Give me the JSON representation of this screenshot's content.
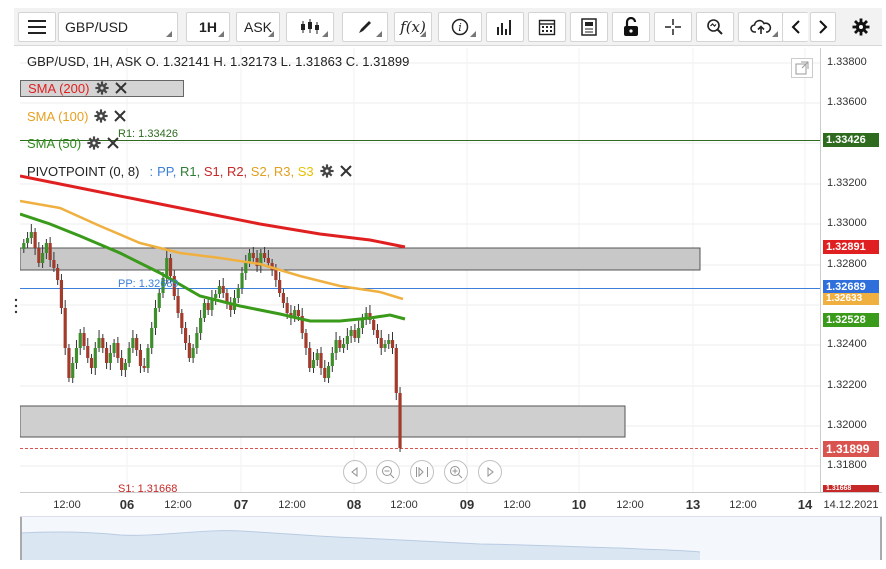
{
  "toolbar": {
    "symbol": "GBP/USD",
    "interval": "1H",
    "price_side": "ASK"
  },
  "legend": {
    "ohlc": "GBP/USD, 1H, ASK   O. 1.32141 H. 1.32173 L. 1.31863 C. 1.31899",
    "sma200": "SMA (200)",
    "sma100": "SMA (100)",
    "sma50": "SMA (50)",
    "pivot_name": "PIVOTPOINT (0, 8)",
    "pivot_sep": ":",
    "pivot_items": [
      {
        "text": "PP,",
        "color": "#3b7fd9"
      },
      {
        "text": "R1,",
        "color": "#2e7d32"
      },
      {
        "text": "S1,",
        "color": "#c62828"
      },
      {
        "text": "R2,",
        "color": "#c62828"
      },
      {
        "text": "S2,",
        "color": "#e0a020"
      },
      {
        "text": "R3,",
        "color": "#e0a020"
      },
      {
        "text": "S3",
        "color": "#e8c000"
      }
    ]
  },
  "levels": {
    "r1": "R1: 1.33426",
    "pp": "PP: 1.32689",
    "s1": "S1: 1.31668"
  },
  "price_axis": {
    "ticks": [
      "1.33800",
      "1.33600",
      "1.33200",
      "1.33000",
      "1.32800",
      "1.32400",
      "1.32200",
      "1.32000",
      "1.31800"
    ],
    "labels": [
      {
        "text": "1.33426",
        "color": "#2e6b1f"
      },
      {
        "text": "1.32891",
        "color": "#e02020"
      },
      {
        "text": "1.32689",
        "color": "#2f6fdc"
      },
      {
        "text": "1.32633",
        "color": "#f0b040"
      },
      {
        "text": "1.32528",
        "color": "#3a9a1a"
      },
      {
        "text": "1.31899",
        "color": "#d9534f"
      },
      {
        "text": "1.31668",
        "color": "#c62828"
      }
    ]
  },
  "time_axis": {
    "ticks": [
      {
        "text": "12:00",
        "day": false
      },
      {
        "text": "06",
        "day": true
      },
      {
        "text": "12:00",
        "day": false
      },
      {
        "text": "07",
        "day": true
      },
      {
        "text": "12:00",
        "day": false
      },
      {
        "text": "08",
        "day": true
      },
      {
        "text": "12:00",
        "day": false
      },
      {
        "text": "09",
        "day": true
      },
      {
        "text": "12:00",
        "day": false
      },
      {
        "text": "10",
        "day": true
      },
      {
        "text": "12:00",
        "day": false
      },
      {
        "text": "13",
        "day": true
      },
      {
        "text": "12:00",
        "day": false
      },
      {
        "text": "14",
        "day": true
      }
    ],
    "date_label": "14.12.2021"
  },
  "colors": {
    "sma200": "#e02020",
    "sma100": "#f0b040",
    "sma50": "#3a9a1a",
    "bull": "#3e8e2e",
    "bear": "#a33b2c",
    "pp_line": "#3b7fd9",
    "r1_line": "#2e6b1f"
  },
  "icons": [
    "menu-icon",
    "candles-icon",
    "draw-icon",
    "function-icon",
    "info-icon",
    "bars-icon",
    "calendar-icon",
    "news-icon",
    "lock-icon",
    "crosshair-icon",
    "zoom-icon",
    "cloud-icon",
    "chevron-left-icon",
    "chevron-right-icon",
    "gear-icon"
  ]
}
